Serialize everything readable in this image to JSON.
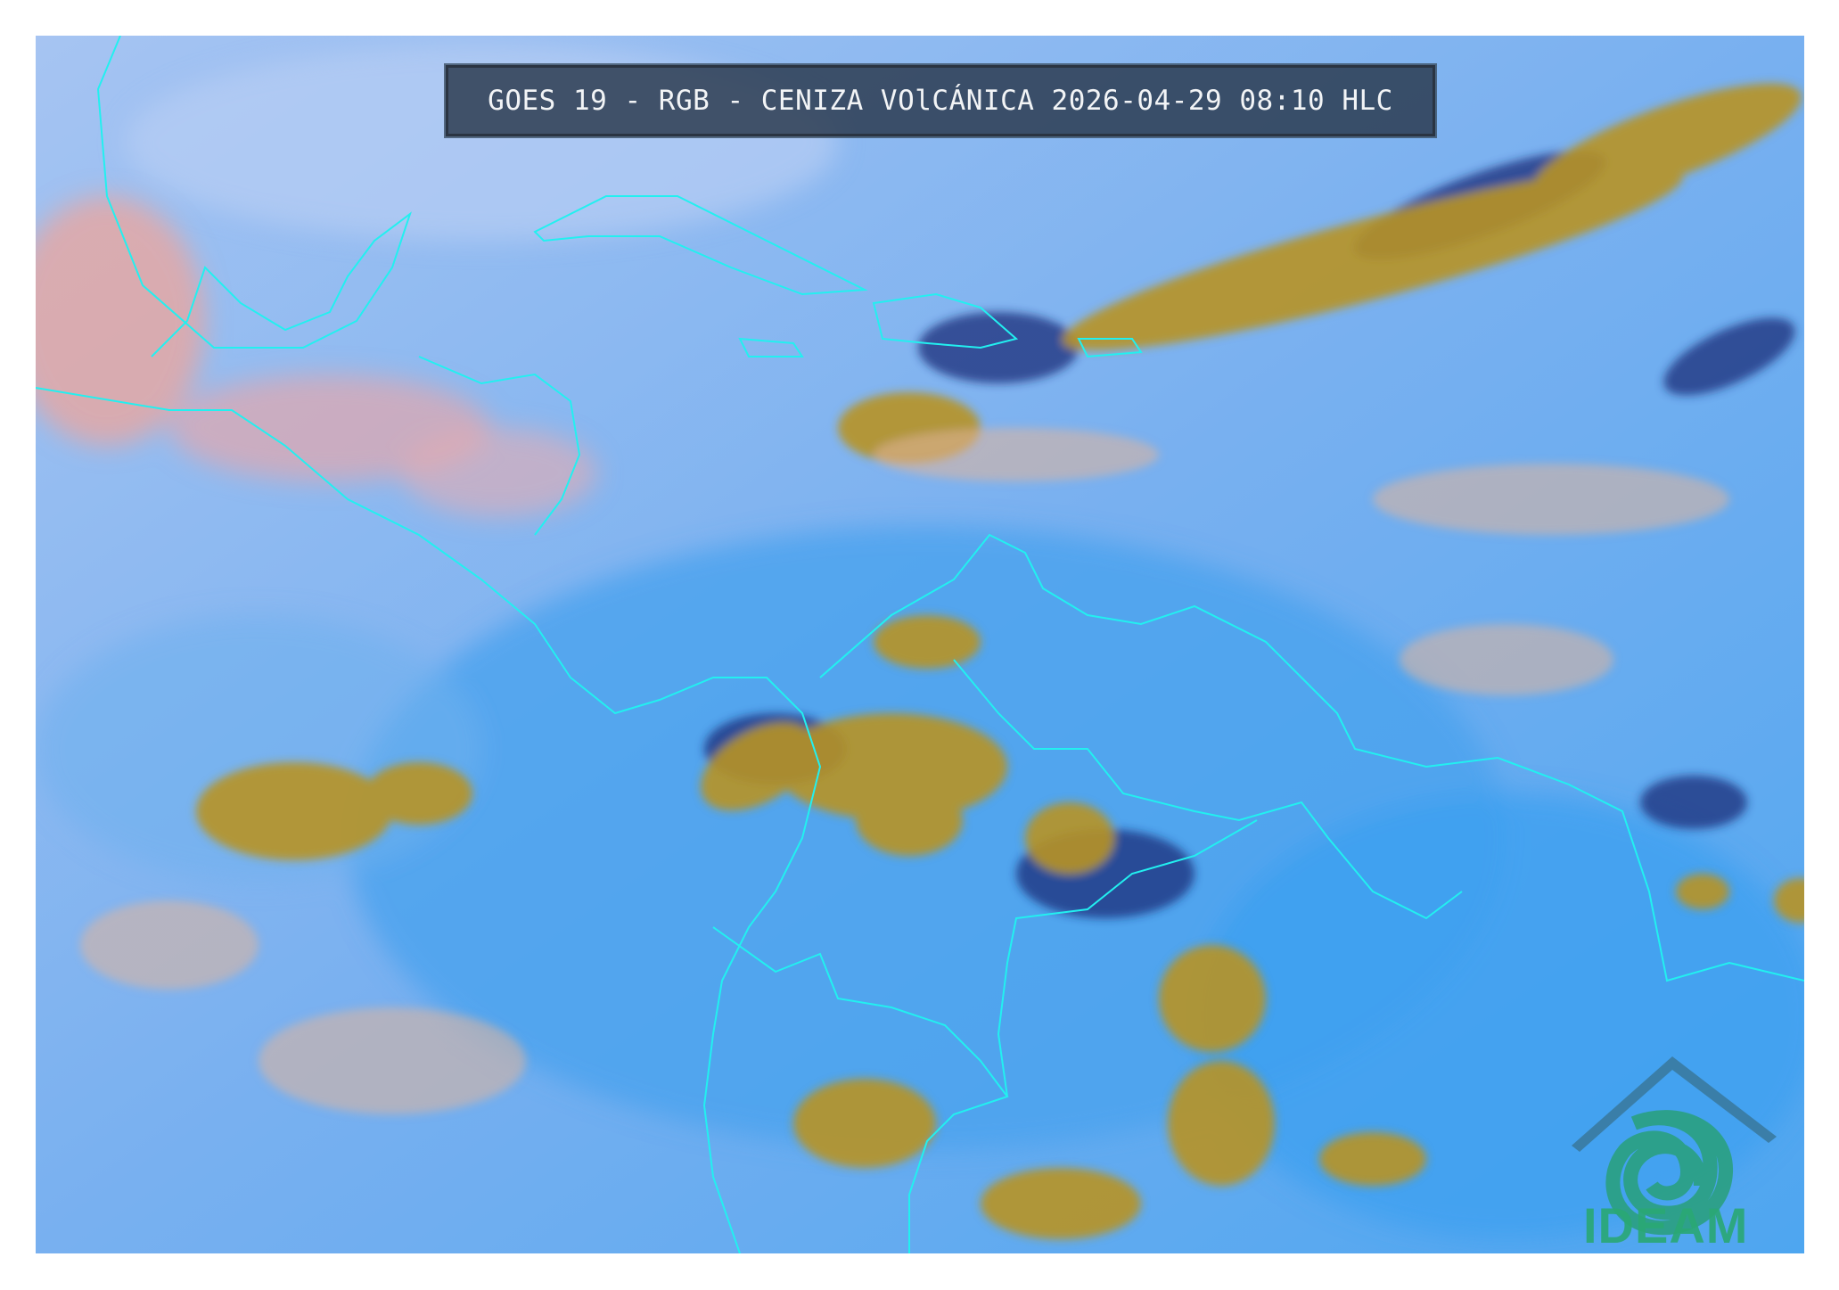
{
  "title": "GOES 19 - RGB - CENIZA VOlCÁNICA 2026-04-29 08:10 HLC",
  "logo": {
    "text": "IDEAM",
    "icon": "ideam-eye-swirl-logo"
  },
  "colors": {
    "background_sky": "#7fb3ee",
    "clear_ocean": "#5aa9f0",
    "high_cloud_yellow": "#b89326",
    "dark_cloud_navy": "#1a2f7a",
    "dust_pink": "#e8a9a8",
    "coastline": "#22f0f0",
    "title_box": "#283748",
    "logo_green": "#2aa874"
  }
}
